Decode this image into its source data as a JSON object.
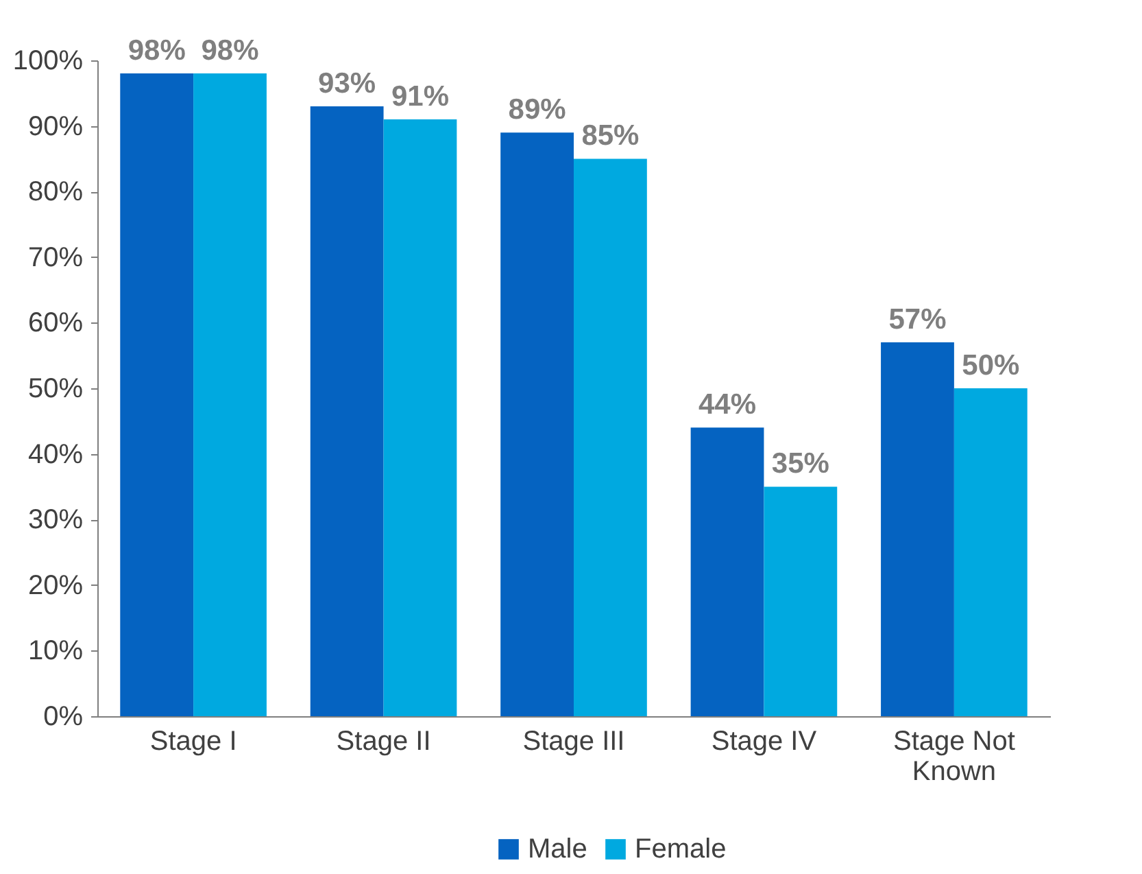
{
  "chart_data": {
    "type": "bar",
    "categories": [
      "Stage I",
      "Stage II",
      "Stage III",
      "Stage IV",
      "Stage Not Known"
    ],
    "series": [
      {
        "name": "Male",
        "color": "#0563c1",
        "values": [
          98,
          93,
          89,
          44,
          57
        ],
        "value_labels": [
          "98%",
          "93%",
          "89%",
          "44%",
          "57%"
        ]
      },
      {
        "name": "Female",
        "color": "#00a9e0",
        "values": [
          98,
          91,
          85,
          35,
          50
        ],
        "value_labels": [
          "98%",
          "91%",
          "85%",
          "35%",
          "50%"
        ]
      }
    ],
    "ylim": [
      0,
      100
    ],
    "yticks": [
      {
        "value": 0,
        "label": "0%"
      },
      {
        "value": 10,
        "label": "10%"
      },
      {
        "value": 20,
        "label": "20%"
      },
      {
        "value": 30,
        "label": "30%"
      },
      {
        "value": 40,
        "label": "40%"
      },
      {
        "value": 50,
        "label": "50%"
      },
      {
        "value": 60,
        "label": "60%"
      },
      {
        "value": 70,
        "label": "70%"
      },
      {
        "value": 80,
        "label": "80%"
      },
      {
        "value": 90,
        "label": "90%"
      },
      {
        "value": 100,
        "label": "100%"
      }
    ],
    "grid": false,
    "legend": "bottom"
  }
}
